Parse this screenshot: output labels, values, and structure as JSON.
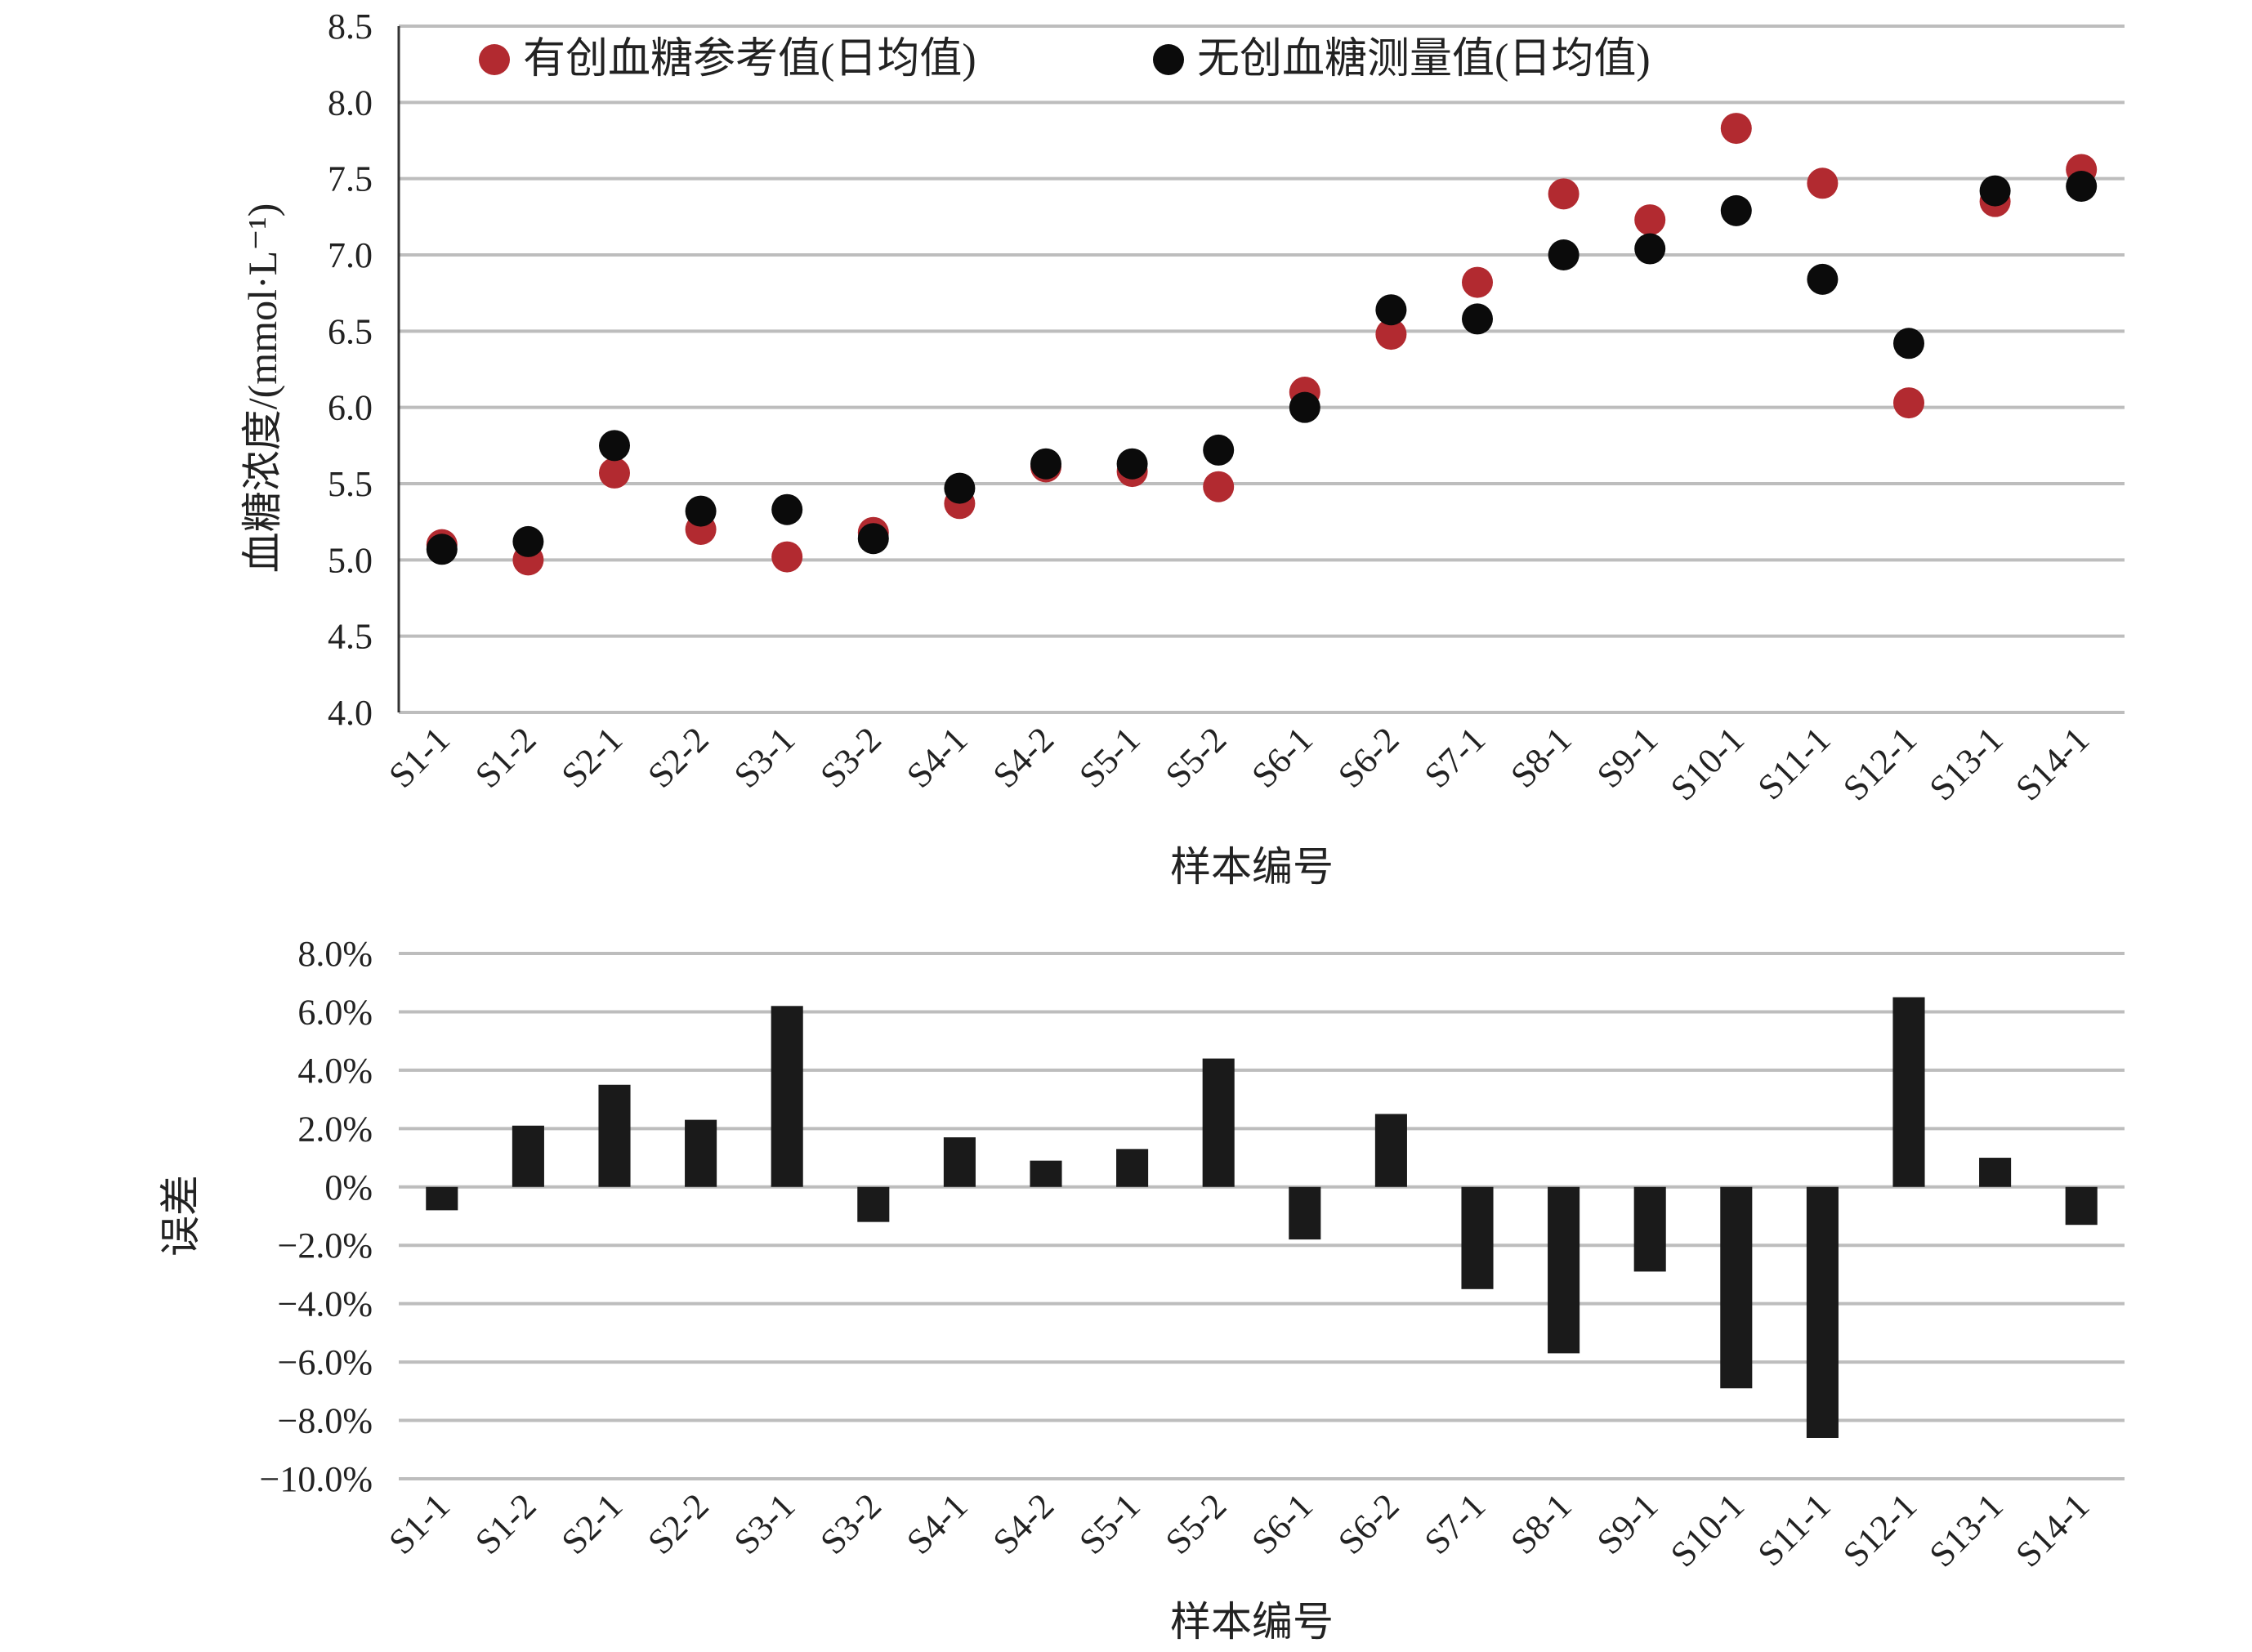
{
  "colors": {
    "reference": "#b22a30",
    "measured": "#0b0b0b",
    "bars": "#1a1a1a",
    "grid": "#bdbdbd",
    "axis": "#333333"
  },
  "chart_data": [
    {
      "type": "scatter",
      "categories": [
        "S1-1",
        "S1-2",
        "S2-1",
        "S2-2",
        "S3-1",
        "S3-2",
        "S4-1",
        "S4-2",
        "S5-1",
        "S5-2",
        "S6-1",
        "S6-2",
        "S7-1",
        "S8-1",
        "S9-1",
        "S10-1",
        "S11-1",
        "S12-1",
        "S13-1",
        "S14-1"
      ],
      "series": [
        {
          "name": "有创血糖参考值(日均值)",
          "values": [
            5.1,
            5.0,
            5.57,
            5.2,
            5.02,
            5.18,
            5.37,
            5.61,
            5.58,
            5.48,
            6.1,
            6.48,
            6.82,
            7.4,
            7.23,
            7.83,
            7.47,
            6.03,
            7.35,
            7.56
          ]
        },
        {
          "name": "无创血糖测量值(日均值)",
          "values": [
            5.07,
            5.12,
            5.75,
            5.32,
            5.33,
            5.14,
            5.47,
            5.63,
            5.63,
            5.72,
            6.0,
            6.64,
            6.58,
            7.0,
            7.04,
            7.29,
            6.84,
            6.42,
            7.42,
            7.45
          ]
        }
      ],
      "ylabel": "血糖浓度/(mmol·L⁻¹)",
      "xlabel": "样本编号",
      "ylim": [
        4.0,
        8.5
      ],
      "yticks": [
        "8.5",
        "8.0",
        "7.5",
        "7.0",
        "6.5",
        "6.0",
        "5.5",
        "5.0",
        "4.5",
        "4.0"
      ],
      "grid": true,
      "legend": "top"
    },
    {
      "type": "bar",
      "categories": [
        "S1-1",
        "S1-2",
        "S2-1",
        "S2-2",
        "S3-1",
        "S3-2",
        "S4-1",
        "S4-2",
        "S5-1",
        "S5-2",
        "S6-1",
        "S6-2",
        "S7-1",
        "S8-1",
        "S9-1",
        "S10-1",
        "S11-1",
        "S12-1",
        "S13-1",
        "S14-1"
      ],
      "values": [
        -0.8,
        2.1,
        3.5,
        2.3,
        6.2,
        -1.2,
        1.7,
        0.9,
        1.3,
        4.4,
        -1.8,
        2.5,
        -3.5,
        -5.7,
        -2.9,
        -6.9,
        -8.6,
        6.5,
        1.0,
        -1.3
      ],
      "unit": "%",
      "ylabel": "误差",
      "xlabel": "样本编号",
      "ylim": [
        -10.0,
        8.0
      ],
      "yticks": [
        "8.0%",
        "6.0%",
        "4.0%",
        "2.0%",
        "0%",
        "−2.0%",
        "−4.0%",
        "−6.0%",
        "−8.0%",
        "−10.0%"
      ],
      "grid": true
    }
  ]
}
